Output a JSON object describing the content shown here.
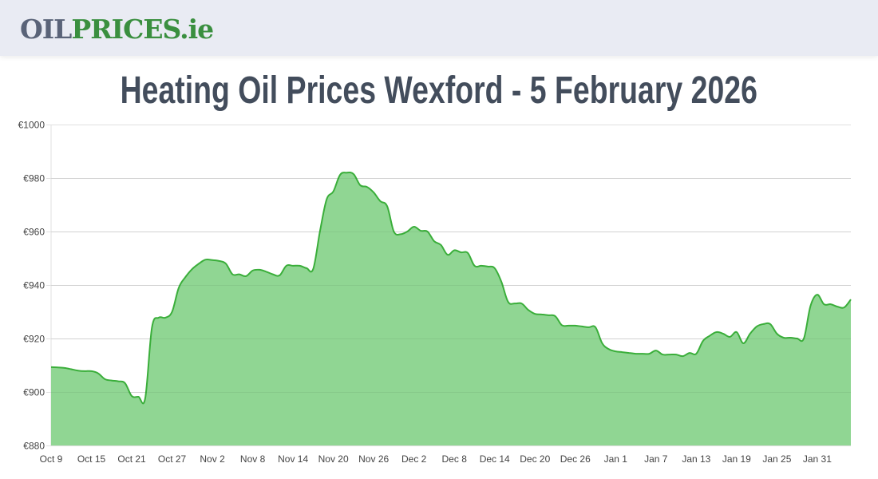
{
  "header": {
    "logo_part1": "OIL",
    "logo_part2": "PRICES.ie",
    "logo_colors": {
      "part1": "#5a6378",
      "part2": "#3a8f3f"
    }
  },
  "page_title": "Heating Oil Prices Wexford - 5 February 2026",
  "colors": {
    "line": "#3aae3a",
    "fill": "#90d693",
    "grid": "#e0e0e0",
    "text": "#434d5c"
  },
  "chart_data": {
    "type": "area",
    "title": "Heating Oil Prices Wexford - 5 February 2026",
    "xlabel": "",
    "ylabel": "",
    "ylim": [
      880,
      1000
    ],
    "yticks": [
      880,
      900,
      920,
      940,
      960,
      980,
      1000
    ],
    "ytick_labels": [
      "€880",
      "€900",
      "€920",
      "€940",
      "€960",
      "€980",
      "€1000"
    ],
    "xtick_labels": [
      "Oct 9",
      "Oct 15",
      "Oct 21",
      "Oct 27",
      "Nov 2",
      "Nov 8",
      "Nov 14",
      "Nov 20",
      "Nov 26",
      "Dec 2",
      "Dec 8",
      "Dec 14",
      "Dec 20",
      "Dec 26",
      "Jan 1",
      "Jan 7",
      "Jan 13",
      "Jan 19",
      "Jan 25",
      "Jan 31"
    ],
    "grid": true,
    "legend": null,
    "x_start": "Oct 9",
    "x_end": "Feb 5",
    "values": [
      909.3,
      909.2,
      909,
      908.5,
      908,
      907.8,
      907.8,
      907,
      904.8,
      904.3,
      904,
      903.3,
      898.5,
      898.2,
      897.6,
      924,
      927.8,
      927.8,
      930,
      939,
      943,
      946,
      948,
      949.5,
      949.3,
      949,
      948,
      944,
      944,
      943.3,
      945.4,
      945.7,
      945,
      944,
      943.6,
      947.2,
      947.2,
      947.2,
      946.3,
      946,
      960,
      972,
      975,
      981.2,
      982,
      981.5,
      977.3,
      976.7,
      974.6,
      971.3,
      969.5,
      960,
      959,
      960,
      961.8,
      960.3,
      960,
      956.4,
      955,
      951.3,
      953,
      952.2,
      952,
      947.2,
      947.2,
      946.9,
      946.3,
      941.2,
      933.7,
      933.1,
      933.1,
      930.7,
      929.2,
      929,
      928.7,
      928.4,
      925,
      924.8,
      924.8,
      924.5,
      924.2,
      924.2,
      918.2,
      916,
      915.2,
      914.9,
      914.6,
      914.3,
      914.3,
      914.3,
      915.5,
      914,
      914,
      914,
      913.4,
      914.6,
      914.3,
      919.1,
      921,
      922.4,
      921.8,
      920.6,
      922.4,
      918.2,
      921.8,
      924.5,
      925.4,
      925.4,
      921.8,
      920.3,
      920.3,
      920,
      920,
      932.2,
      936.4,
      932.8,
      932.8,
      931.9,
      931.6,
      934.6
    ]
  }
}
